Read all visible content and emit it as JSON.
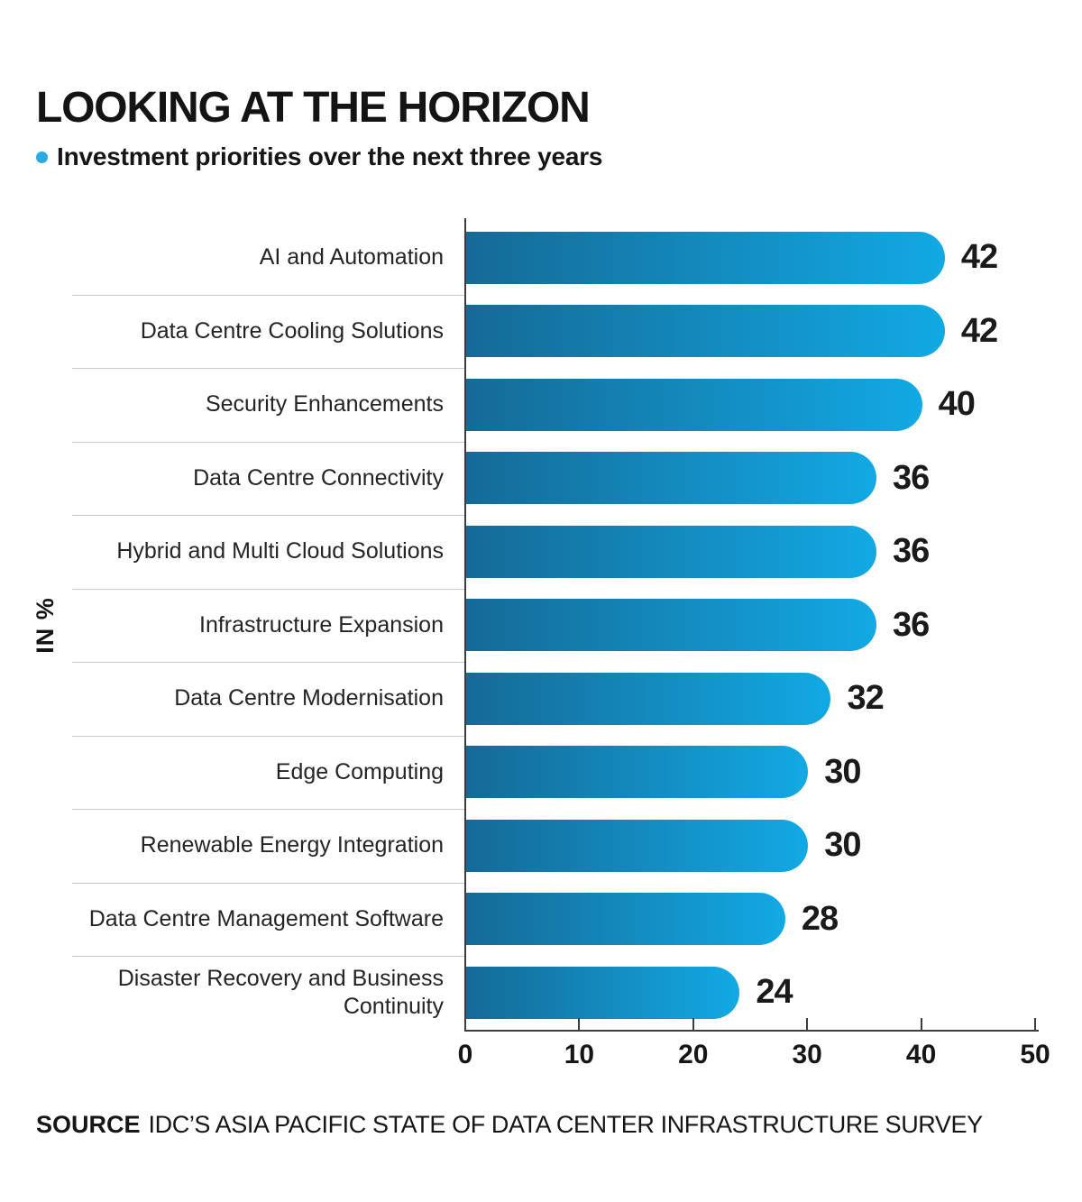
{
  "title": "LOOKING AT THE HORIZON",
  "subtitle": "Investment priorities over the next three years",
  "source": {
    "label": "SOURCE",
    "text": "IDC’S ASIA PACIFIC STATE OF DATA CENTER INFRASTRUCTURE SURVEY"
  },
  "chart_data": {
    "type": "bar",
    "orientation": "horizontal",
    "title": "LOOKING AT THE HORIZON",
    "subtitle": "Investment priorities over the next three years",
    "ylabel": "IN %",
    "categories": [
      "AI and Automation",
      "Data Centre Cooling Solutions",
      "Security Enhancements",
      "Data Centre Connectivity",
      "Hybrid and Multi Cloud Solutions",
      "Infrastructure Expansion",
      "Data Centre Modernisation",
      "Edge Computing",
      "Renewable Energy Integration",
      "Data Centre Management Software",
      "Disaster Recovery and Business Continuity"
    ],
    "values": [
      42,
      42,
      40,
      36,
      36,
      36,
      32,
      30,
      30,
      28,
      24
    ],
    "xlim": [
      0,
      50
    ],
    "xticks": [
      0,
      10,
      20,
      30,
      40,
      50
    ],
    "grid": false,
    "legend": false,
    "value_labels": true,
    "bar_color_start": "#156A96",
    "bar_color_end": "#12A9E4",
    "accent": "#29ABE2"
  }
}
